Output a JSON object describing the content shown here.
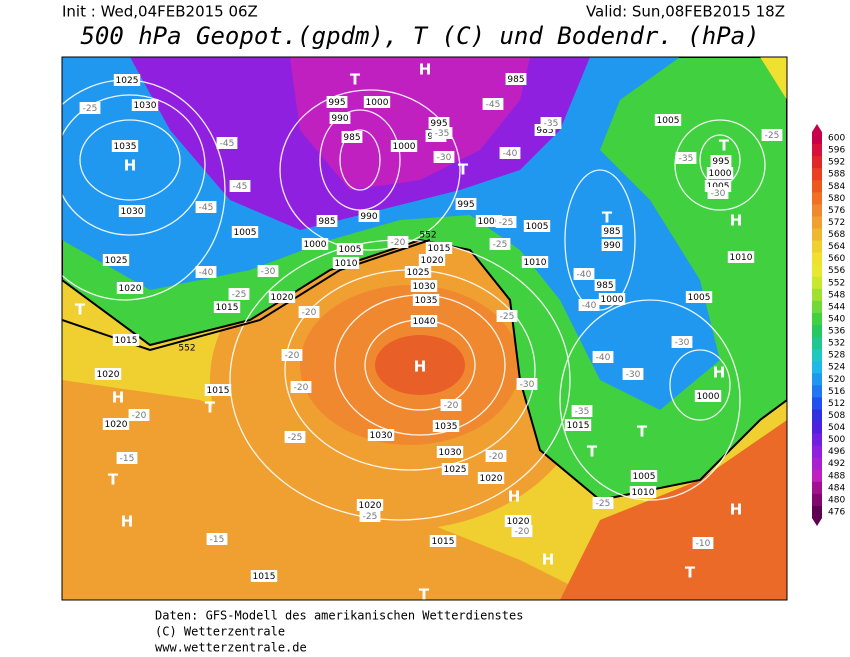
{
  "header": {
    "init": "Init : Wed,04FEB2015 06Z",
    "valid": "Valid: Sun,08FEB2015 18Z",
    "title": "500 hPa Geopot.(gpdm), T (C) und Bodendr. (hPa)"
  },
  "colorbar": {
    "labels": [
      "600",
      "596",
      "592",
      "588",
      "584",
      "580",
      "576",
      "572",
      "568",
      "564",
      "560",
      "556",
      "552",
      "548",
      "544",
      "540",
      "536",
      "532",
      "528",
      "524",
      "520",
      "516",
      "512",
      "508",
      "504",
      "500",
      "496",
      "492",
      "488",
      "484",
      "480",
      "476"
    ],
    "colors": [
      "#c8004b",
      "#d8103c",
      "#e02828",
      "#e84020",
      "#ec5820",
      "#f07028",
      "#f08830",
      "#f0a030",
      "#f0b830",
      "#f0d030",
      "#f0e030",
      "#e8e830",
      "#c8e830",
      "#a0e030",
      "#70d838",
      "#40d040",
      "#28c860",
      "#20c890",
      "#20c8c0",
      "#20b8e8",
      "#2098f0",
      "#2078f0",
      "#2050f0",
      "#3030e0",
      "#5020e0",
      "#7020e0",
      "#9020e0",
      "#a820d0",
      "#c020c0",
      "#a01090",
      "#800870",
      "#600050"
    ]
  },
  "map": {
    "centers": [
      "H",
      "H",
      "H",
      "H",
      "H",
      "H",
      "H",
      "H",
      "H",
      "H",
      "T",
      "T",
      "T",
      "T",
      "T",
      "T",
      "T",
      "T",
      "T",
      "T",
      "T"
    ],
    "isobar_labels": [
      "1025",
      "1030",
      "1035",
      "1030",
      "1025",
      "1020",
      "1015",
      "1015",
      "1020",
      "1015",
      "1020",
      "995",
      "1000",
      "990",
      "985",
      "995",
      "990",
      "1000",
      "995",
      "1000",
      "985",
      "990",
      "1000",
      "1005",
      "1010",
      "1015",
      "1020",
      "1025",
      "1030",
      "1035",
      "1040",
      "1020",
      "1030",
      "1035",
      "1030",
      "1025",
      "1020",
      "1020",
      "1020",
      "1015",
      "1015",
      "1005",
      "1005",
      "1000",
      "995",
      "1005",
      "1010",
      "985",
      "990",
      "985",
      "1000",
      "1005",
      "1010",
      "1000",
      "1005",
      "1010",
      "1015",
      "985",
      "985",
      "1005"
    ],
    "temperature_labels": [
      "-25",
      "-45",
      "-45",
      "-45",
      "-40",
      "-30",
      "-25",
      "-20",
      "-20",
      "-20",
      "-25",
      "-20",
      "-15",
      "-15",
      "-25",
      "-20",
      "-20",
      "-10",
      "-25",
      "-30",
      "-40",
      "-35",
      "-30",
      "-30",
      "-30",
      "-35",
      "-45",
      "-40",
      "-35",
      "-25",
      "-35",
      "-30",
      "-40",
      "-40",
      "-25",
      "-20",
      "-20",
      "-25",
      "-25"
    ],
    "geopotential_labels": [
      "552",
      "552"
    ]
  },
  "footer": {
    "line1": "Daten: GFS-Modell des amerikanischen Wetterdienstes",
    "line2": "(C) Wetterzentrale",
    "line3": "www.wetterzentrale.de"
  }
}
